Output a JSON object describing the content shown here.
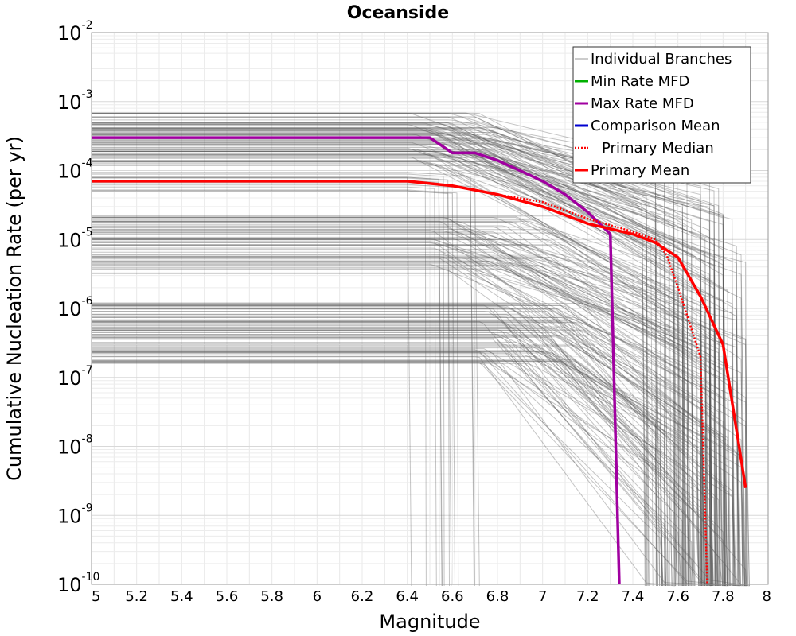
{
  "chart_data": {
    "type": "line",
    "title": "Oceanside",
    "xlabel": "Magnitude",
    "ylabel": "Cumulative Nucleation Rate (per yr)",
    "xlim": [
      5,
      8
    ],
    "ylim": [
      1e-10,
      0.01
    ],
    "y_scale": "log",
    "grid": true,
    "legend_position": "top-right",
    "x_ticks": [
      "5",
      "5.2",
      "5.4",
      "5.6",
      "5.8",
      "6",
      "6.2",
      "6.4",
      "6.6",
      "6.8",
      "7",
      "7.2",
      "7.4",
      "7.6",
      "7.8",
      "8"
    ],
    "y_ticks": [
      {
        "base": "10",
        "exp": "-10"
      },
      {
        "base": "10",
        "exp": "-9"
      },
      {
        "base": "10",
        "exp": "-8"
      },
      {
        "base": "10",
        "exp": "-7"
      },
      {
        "base": "10",
        "exp": "-6"
      },
      {
        "base": "10",
        "exp": "-5"
      },
      {
        "base": "10",
        "exp": "-4"
      },
      {
        "base": "10",
        "exp": "-3"
      },
      {
        "base": "10",
        "exp": "-2"
      }
    ],
    "series": [
      {
        "name": "Individual Branches",
        "color": "#555555"
      },
      {
        "name": "Min Rate MFD",
        "color": "#00b000"
      },
      {
        "name": "Max Rate MFD",
        "color": "#a000a0",
        "x": [
          5.0,
          6.5,
          6.6,
          6.7,
          6.8,
          6.9,
          7.0,
          7.1,
          7.2,
          7.3,
          7.34
        ],
        "y": [
          0.0003,
          0.0003,
          0.00018,
          0.00018,
          0.00014,
          0.0001,
          7e-05,
          4.5e-05,
          2.5e-05,
          1.2e-05,
          1e-10
        ]
      },
      {
        "name": "Comparison Mean",
        "color": "#0000d0"
      },
      {
        "name": "Primary Median",
        "color": "#ff0000",
        "dash": "dotted",
        "x": [
          5.0,
          6.4,
          6.6,
          6.8,
          7.0,
          7.2,
          7.4,
          7.5,
          7.55,
          7.6,
          7.7,
          7.73
        ],
        "y": [
          7e-05,
          7e-05,
          6e-05,
          4.5e-05,
          3.5e-05,
          2e-05,
          1.3e-05,
          1e-05,
          6e-06,
          2e-06,
          2e-07,
          1e-10
        ]
      },
      {
        "name": "Primary Mean",
        "color": "#ff0000",
        "x": [
          5.0,
          6.4,
          6.6,
          6.8,
          7.0,
          7.2,
          7.4,
          7.5,
          7.6,
          7.7,
          7.8,
          7.9
        ],
        "y": [
          7e-05,
          7e-05,
          6e-05,
          4.5e-05,
          3e-05,
          1.7e-05,
          1.2e-05,
          9e-06,
          5.5e-06,
          1.5e-06,
          3e-07,
          2.5e-09
        ]
      }
    ]
  }
}
